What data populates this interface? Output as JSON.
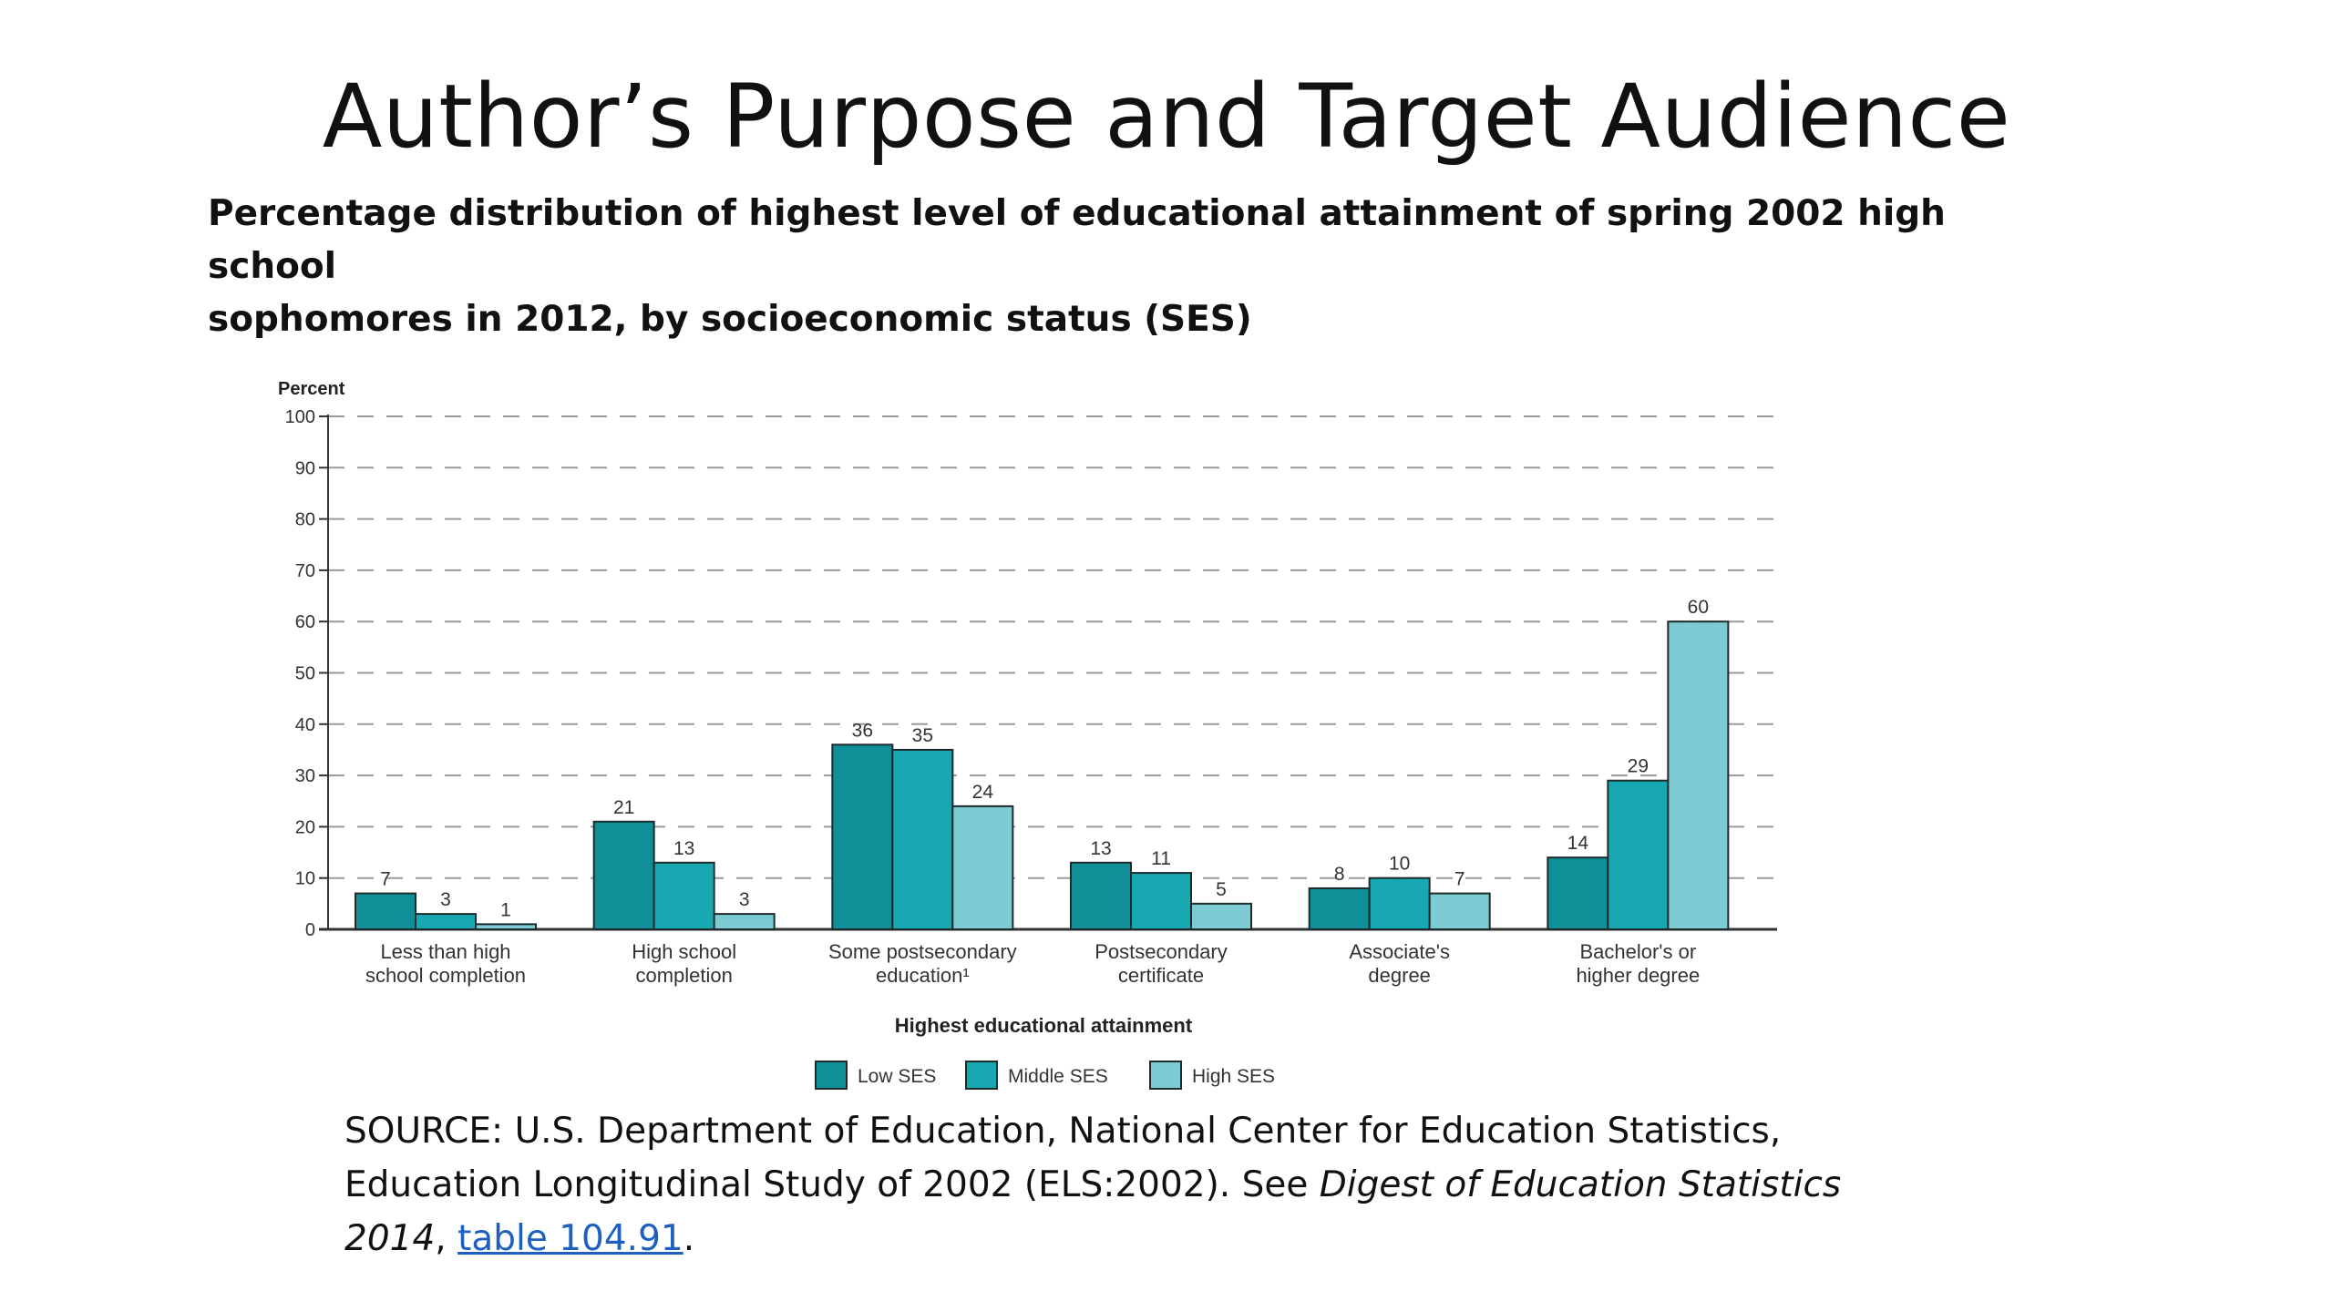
{
  "slide": {
    "title": "Author’s Purpose and Target Audience"
  },
  "chart_heading": {
    "line1": "Percentage distribution of highest level of educational attainment of spring 2002 high school",
    "line2": "sophomores in 2012, by socioeconomic status (SES)"
  },
  "source": {
    "prefix": "SOURCE: U.S. Department of Education, National Center for Education Statistics,",
    "line2": "Education Longitudinal Study of 2002 (ELS:2002). See ",
    "digest_italic": "Digest of Education Statistics",
    "year_italic": "2014",
    "comma": ", ",
    "link_text": "table 104.91",
    "period": "."
  },
  "colors": {
    "low_ses": "#0f8f98",
    "middle_ses": "#17a8b2",
    "high_ses": "#7ccad2",
    "grid": "#9a9a9a",
    "link": "#1f5fbf"
  },
  "chart_data": {
    "type": "bar",
    "ylabel": "Percent",
    "xlabel": "Highest educational attainment",
    "ylim": [
      0,
      100
    ],
    "yticks": [
      0,
      10,
      20,
      30,
      40,
      50,
      60,
      70,
      80,
      90,
      100
    ],
    "grid": true,
    "grid_style": "dashed",
    "legend_position": "bottom-center",
    "categories": [
      [
        "Less than high",
        "school completion"
      ],
      [
        "High school",
        "completion"
      ],
      [
        "Some postsecondary",
        "education¹"
      ],
      [
        "Postsecondary",
        "certificate"
      ],
      [
        "Associate's",
        "degree"
      ],
      [
        "Bachelor's or",
        "higher degree"
      ]
    ],
    "series": [
      {
        "name": "Low SES",
        "values": [
          7,
          21,
          36,
          13,
          8,
          14
        ]
      },
      {
        "name": "Middle SES",
        "values": [
          3,
          13,
          35,
          11,
          10,
          29
        ]
      },
      {
        "name": "High SES",
        "values": [
          1,
          3,
          24,
          5,
          7,
          60
        ]
      }
    ]
  }
}
